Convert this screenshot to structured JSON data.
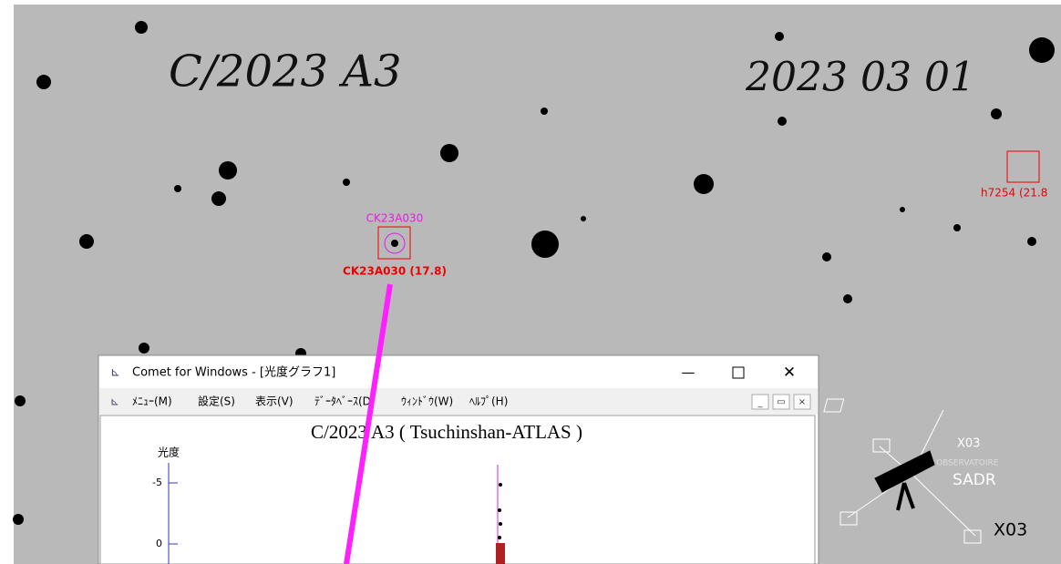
{
  "image": {
    "object": "C/2023 A3",
    "date": "2023 03 01",
    "target_label": "CK23A030",
    "target_mag_label": "CK23A030 (17.8)",
    "other_label": "h7254 (21.8"
  },
  "logo": {
    "code": "X03",
    "line1": "OBSERVATOIRE",
    "name": "SADR",
    "code2": "X03"
  },
  "window": {
    "title": "Comet for Windows - [光度グラフ1]",
    "menu": [
      "ﾒﾆｭｰ(M)",
      "設定(S)",
      "表示(V)",
      "ﾃﾞｰﾀﾍﾞｰｽ(D)",
      "ｳｨﾝﾄﾞｳ(W)",
      "ﾍﾙﾌﾟ(H)"
    ],
    "graph": {
      "title": "C/2023 A3 ( Tsuchinshan-ATLAS )",
      "y_label": "光度",
      "yticks": [
        -5,
        0
      ]
    }
  }
}
